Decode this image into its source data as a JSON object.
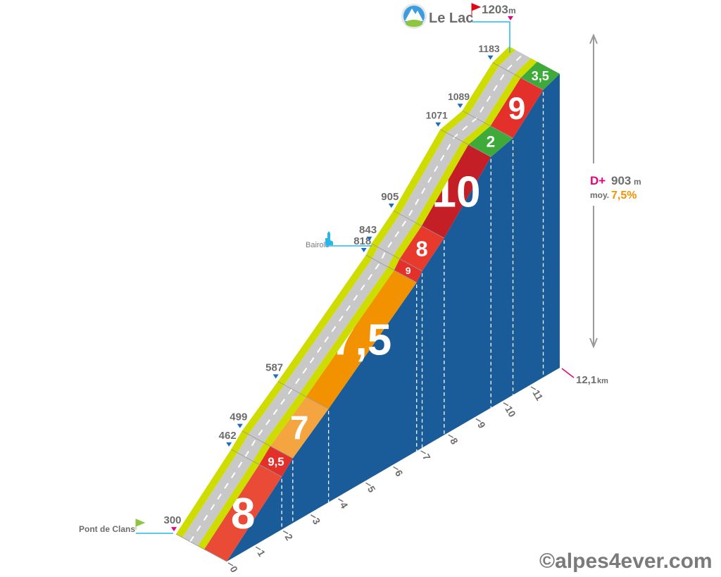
{
  "chart_data": {
    "type": "area",
    "title": "",
    "km": [
      0,
      2.0,
      2.4,
      3.7,
      6.9,
      7.1,
      7.9,
      9.6,
      10.4,
      11.5,
      12.1
    ],
    "elevation": [
      300,
      462,
      499,
      587,
      818,
      843,
      905,
      1071,
      1089,
      1183,
      1203
    ],
    "segments": [
      {
        "gradient": "8",
        "color": "#e94b36"
      },
      {
        "gradient": "9,5",
        "color": "#e4302b"
      },
      {
        "gradient": "7",
        "color": "#f5a53f"
      },
      {
        "gradient": "7,5",
        "color": "#f39200"
      },
      {
        "gradient": "9",
        "color": "#e4302b"
      },
      {
        "gradient": "8",
        "color": "#e8392d"
      },
      {
        "gradient": "10",
        "color": "#c41e26"
      },
      {
        "gradient": "2",
        "color": "#3daa3a"
      },
      {
        "gradient": "9",
        "color": "#e4302b"
      },
      {
        "gradient": "3,5",
        "color": "#3daa3a"
      }
    ],
    "km_ticks": [
      "0",
      "1",
      "2",
      "3",
      "4",
      "5",
      "6",
      "7",
      "8",
      "9",
      "10",
      "11"
    ],
    "distance_total": "12,1",
    "distance_unit": "km",
    "markers": [
      {
        "label": "300",
        "km": 0,
        "elev": 300,
        "color": "#e5007e"
      },
      {
        "label": "462",
        "km": 2.0,
        "elev": 462,
        "color": "#1b6fb8"
      },
      {
        "label": "499",
        "km": 2.4,
        "elev": 499,
        "color": "#1b6fb8"
      },
      {
        "label": "587",
        "km": 3.7,
        "elev": 587,
        "color": "#1b6fb8"
      },
      {
        "label": "818",
        "km": 6.9,
        "elev": 818,
        "color": "#1b6fb8"
      },
      {
        "label": "843",
        "km": 7.1,
        "elev": 843,
        "color": "#1b6fb8"
      },
      {
        "label": "905",
        "km": 7.9,
        "elev": 905,
        "color": "#1b6fb8"
      },
      {
        "label": "1071",
        "km": 9.6,
        "elev": 1071,
        "color": "#1b6fb8"
      },
      {
        "label": "1089",
        "km": 10.4,
        "elev": 1089,
        "color": "#1b6fb8"
      },
      {
        "label": "1183",
        "km": 11.5,
        "elev": 1183,
        "color": "#1b6fb8"
      }
    ],
    "colors": {
      "wall": "#1a5c9a",
      "road": "#c8c8c8",
      "shoulder": "#cfdc00",
      "line": "#29b6e8"
    }
  },
  "places": {
    "start": {
      "name": "Pont de Clans"
    },
    "village": {
      "name": "Bairols"
    },
    "summit": {
      "name": "Le Lac",
      "elevation": "1203",
      "unit": "m"
    }
  },
  "summary": {
    "dplus_label": "D+",
    "dplus_value": "903",
    "dplus_unit": "m",
    "avg_label": "moy.",
    "avg_value": "7,5%"
  },
  "watermark": "©alpes4ever.com"
}
